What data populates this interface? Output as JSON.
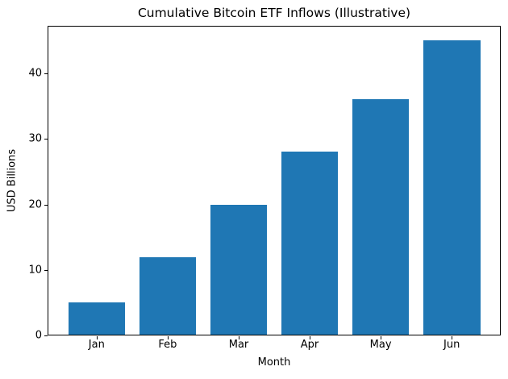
{
  "chart_data": {
    "type": "bar",
    "title": "Cumulative Bitcoin ETF Inflows (Illustrative)",
    "xlabel": "Month",
    "ylabel": "USD Billions",
    "categories": [
      "Jan",
      "Feb",
      "Mar",
      "Apr",
      "May",
      "Jun"
    ],
    "values": [
      5,
      12,
      20,
      28,
      36,
      45
    ],
    "yticks": [
      0,
      10,
      20,
      30,
      40
    ],
    "ylim": [
      0,
      47.25
    ],
    "xlim": [
      -0.69,
      5.69
    ],
    "bar_width": 0.8,
    "bar_color": "#1f77b4",
    "background_color": "#ffffff",
    "grid": false,
    "legend": false
  }
}
